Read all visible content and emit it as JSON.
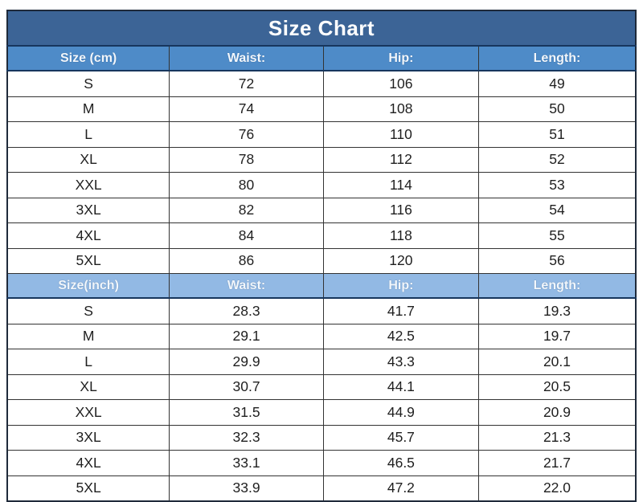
{
  "page_title": "Size Chart",
  "chart_data": {
    "type": "table",
    "title": "Size Chart",
    "sections": [
      {
        "unit": "cm",
        "headers": [
          "Size (cm)",
          "Waist:",
          "Hip:",
          "Length:"
        ],
        "rows": [
          [
            "S",
            "72",
            "106",
            "49"
          ],
          [
            "M",
            "74",
            "108",
            "50"
          ],
          [
            "L",
            "76",
            "110",
            "51"
          ],
          [
            "XL",
            "78",
            "112",
            "52"
          ],
          [
            "XXL",
            "80",
            "114",
            "53"
          ],
          [
            "3XL",
            "82",
            "116",
            "54"
          ],
          [
            "4XL",
            "84",
            "118",
            "55"
          ],
          [
            "5XL",
            "86",
            "120",
            "56"
          ]
        ]
      },
      {
        "unit": "inch",
        "headers": [
          "Size(inch)",
          "Waist:",
          "Hip:",
          "Length:"
        ],
        "rows": [
          [
            "S",
            "28.3",
            "41.7",
            "19.3"
          ],
          [
            "M",
            "29.1",
            "42.5",
            "19.7"
          ],
          [
            "L",
            "29.9",
            "43.3",
            "20.1"
          ],
          [
            "XL",
            "30.7",
            "44.1",
            "20.5"
          ],
          [
            "XXL",
            "31.5",
            "44.9",
            "20.9"
          ],
          [
            "3XL",
            "32.3",
            "45.7",
            "21.3"
          ],
          [
            "4XL",
            "33.1",
            "46.5",
            "21.7"
          ],
          [
            "5XL",
            "33.9",
            "47.2",
            "22.0"
          ]
        ]
      }
    ]
  },
  "colors": {
    "title_bg": "#3c6496",
    "header_cm_bg": "#4e8bc8",
    "header_inch_bg": "#92b9e4",
    "header_text": "#f2f7fc",
    "body_text": "#1f1f1f",
    "grid_border": "#333333",
    "header_underline": "#17365d",
    "page_bg": "#ffffff"
  }
}
